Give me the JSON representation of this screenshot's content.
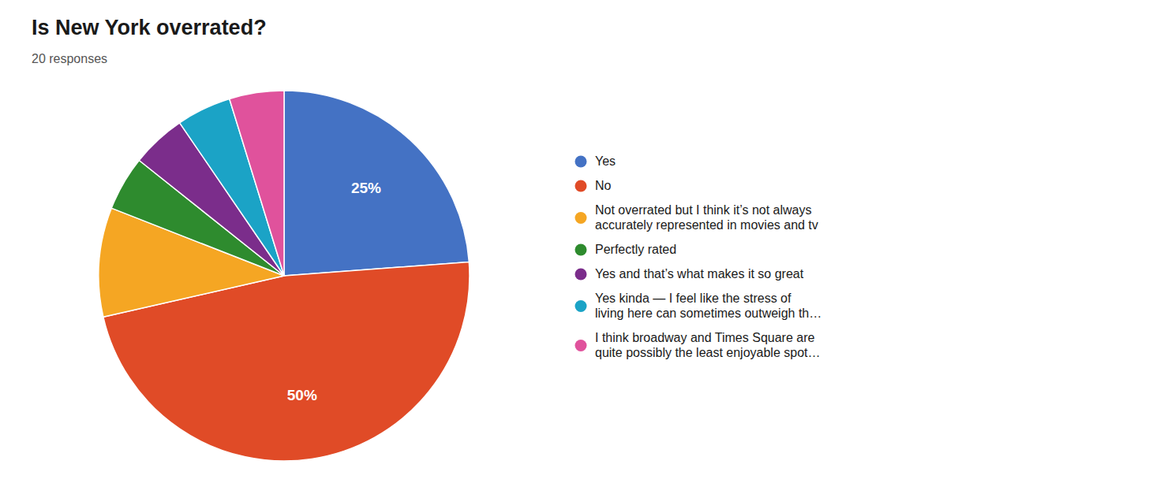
{
  "chart_data": {
    "type": "pie",
    "title": "Is New York overrated?",
    "subtitle": "20 responses",
    "categories": [
      "Yes",
      "No",
      "Not overrated but I think it’s not always\naccurately represented in movies and tv",
      "Perfectly rated",
      "Yes and that’s what makes it so great",
      "Yes kinda — I feel like the stress of\nliving here can sometimes outweigh th…",
      "I think broadway and Times Square are\nquite possibly the least enjoyable spot…"
    ],
    "values": [
      25,
      50,
      10,
      5,
      5,
      5,
      5
    ],
    "value_labels": [
      "25%",
      "50%",
      null,
      null,
      null,
      null,
      null
    ],
    "data_labels": true,
    "colors": [
      "#4472C4",
      "#E04B27",
      "#F5A623",
      "#2E8B2E",
      "#7B2D8B",
      "#1BA3C6",
      "#E0529C"
    ],
    "legend": "right"
  }
}
